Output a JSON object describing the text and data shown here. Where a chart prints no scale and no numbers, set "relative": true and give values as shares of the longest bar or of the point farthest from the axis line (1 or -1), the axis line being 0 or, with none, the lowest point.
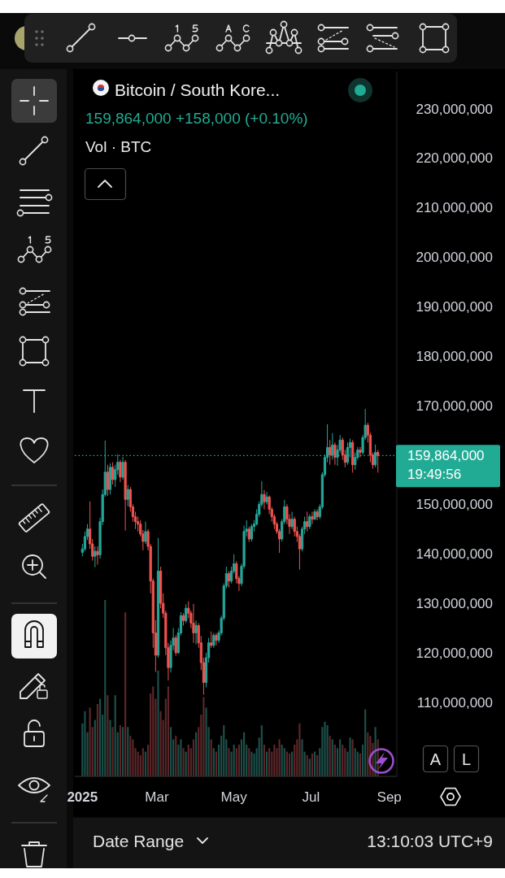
{
  "chart_data": [
    {
      "type": "candlestick",
      "title": "Bitcoin / South Kore...",
      "subtitle": "159,864,000 +158,000 (+0.10%)",
      "x": [
        "2025-01-01",
        "2025-01-03",
        "2025-01-05",
        "2025-01-07",
        "2025-01-09",
        "2025-01-11",
        "2025-01-13",
        "2025-01-15",
        "2025-01-17",
        "2025-01-19",
        "2025-01-21",
        "2025-01-23",
        "2025-01-25",
        "2025-01-27",
        "2025-01-29",
        "2025-01-31",
        "2025-02-02",
        "2025-02-04",
        "2025-02-06",
        "2025-02-08",
        "2025-02-10",
        "2025-02-12",
        "2025-02-14",
        "2025-02-16",
        "2025-02-18",
        "2025-02-20",
        "2025-02-22",
        "2025-02-24",
        "2025-02-26",
        "2025-02-28",
        "2025-03-02",
        "2025-03-04",
        "2025-03-06",
        "2025-03-08",
        "2025-03-10",
        "2025-03-12",
        "2025-03-14",
        "2025-03-16",
        "2025-03-18",
        "2025-03-20",
        "2025-03-22",
        "2025-03-24",
        "2025-03-26",
        "2025-03-28",
        "2025-03-30",
        "2025-04-01",
        "2025-04-03",
        "2025-04-05",
        "2025-04-07",
        "2025-04-09",
        "2025-04-11",
        "2025-04-13",
        "2025-04-15",
        "2025-04-17",
        "2025-04-19",
        "2025-04-21",
        "2025-04-23",
        "2025-04-25",
        "2025-04-27",
        "2025-04-29",
        "2025-05-01",
        "2025-05-03",
        "2025-05-05",
        "2025-05-07",
        "2025-05-09",
        "2025-05-11",
        "2025-05-13",
        "2025-05-15",
        "2025-05-17",
        "2025-05-19",
        "2025-05-21",
        "2025-05-23",
        "2025-05-25",
        "2025-05-27",
        "2025-05-29",
        "2025-05-31",
        "2025-06-02",
        "2025-06-04",
        "2025-06-06",
        "2025-06-08",
        "2025-06-10",
        "2025-06-12",
        "2025-06-14",
        "2025-06-16",
        "2025-06-18",
        "2025-06-20",
        "2025-06-22",
        "2025-06-24",
        "2025-06-26",
        "2025-06-28",
        "2025-06-30",
        "2025-07-02",
        "2025-07-04",
        "2025-07-06",
        "2025-07-08",
        "2025-07-10",
        "2025-07-12",
        "2025-07-14",
        "2025-07-16",
        "2025-07-18",
        "2025-07-20",
        "2025-07-22",
        "2025-07-24",
        "2025-07-26",
        "2025-07-28",
        "2025-07-30",
        "2025-08-01",
        "2025-08-03",
        "2025-08-05",
        "2025-08-07",
        "2025-08-09",
        "2025-08-11",
        "2025-08-13",
        "2025-08-15",
        "2025-08-17",
        "2025-08-19",
        "2025-08-21",
        "2025-08-23"
      ],
      "ohlc": [
        [
          140300000,
          142000000,
          139500000,
          141000000
        ],
        [
          141000000,
          144500000,
          140500000,
          143500000
        ],
        [
          143500000,
          146000000,
          142800000,
          145000000
        ],
        [
          145000000,
          150600000,
          141000000,
          142000000
        ],
        [
          142000000,
          143000000,
          138600000,
          139500000
        ],
        [
          139500000,
          141500000,
          137300000,
          140500000
        ],
        [
          140500000,
          141500000,
          137800000,
          139800000
        ],
        [
          139800000,
          147300000,
          139000000,
          146500000
        ],
        [
          146500000,
          153000000,
          145800000,
          152000000
        ],
        [
          152000000,
          162900000,
          151500000,
          156500000
        ],
        [
          156500000,
          158000000,
          151700000,
          153000000
        ],
        [
          153000000,
          158300000,
          152000000,
          157500000
        ],
        [
          157500000,
          158500000,
          154000000,
          155000000
        ],
        [
          155000000,
          158000000,
          153500000,
          157000000
        ],
        [
          157000000,
          160100000,
          156000000,
          158500000
        ],
        [
          158500000,
          159000000,
          154500000,
          155500000
        ],
        [
          155500000,
          159600000,
          155000000,
          158500000
        ],
        [
          158500000,
          159000000,
          144700000,
          151000000
        ],
        [
          151000000,
          153900000,
          149600000,
          153000000
        ],
        [
          153000000,
          153500000,
          148500000,
          149500000
        ],
        [
          149500000,
          150000000,
          146500000,
          147500000
        ],
        [
          147500000,
          148500000,
          145000000,
          146500000
        ],
        [
          146500000,
          147500000,
          144500000,
          146000000
        ],
        [
          146000000,
          146800000,
          143500000,
          144000000
        ],
        [
          144000000,
          144800000,
          140700000,
          142500000
        ],
        [
          142500000,
          146500000,
          142000000,
          144500000
        ],
        [
          144500000,
          145000000,
          140700000,
          141500000
        ],
        [
          141500000,
          142000000,
          132000000,
          134500000
        ],
        [
          134500000,
          135000000,
          121000000,
          124000000
        ],
        [
          124000000,
          126600000,
          116100000,
          119500000
        ],
        [
          119500000,
          143200000,
          119000000,
          136500000
        ],
        [
          136500000,
          137400000,
          129000000,
          130000000
        ],
        [
          130000000,
          132000000,
          127000000,
          128000000
        ],
        [
          128000000,
          128500000,
          119500000,
          121000000
        ],
        [
          121000000,
          122000000,
          114400000,
          117000000
        ],
        [
          117000000,
          122500000,
          116000000,
          121500000
        ],
        [
          121500000,
          125000000,
          120500000,
          123000000
        ],
        [
          123000000,
          123500000,
          119400000,
          120000000
        ],
        [
          120000000,
          125000000,
          119800000,
          124000000
        ],
        [
          124000000,
          128200000,
          123500000,
          127500000
        ],
        [
          127500000,
          128000000,
          125500000,
          126500000
        ],
        [
          126500000,
          129800000,
          126000000,
          129000000
        ],
        [
          129000000,
          130400000,
          127000000,
          128000000
        ],
        [
          128000000,
          128500000,
          125000000,
          126000000
        ],
        [
          126000000,
          129900000,
          122000000,
          124000000
        ],
        [
          124000000,
          126500000,
          121700000,
          125500000
        ],
        [
          125500000,
          126000000,
          121000000,
          122000000
        ],
        [
          122000000,
          123400000,
          116500000,
          118000000
        ],
        [
          118000000,
          119000000,
          111500000,
          114000000
        ],
        [
          114000000,
          120000000,
          113000000,
          119000000
        ],
        [
          119000000,
          123000000,
          118000000,
          122000000
        ],
        [
          122000000,
          124300000,
          121000000,
          121500000
        ],
        [
          121500000,
          124000000,
          121000000,
          123500000
        ],
        [
          123500000,
          124000000,
          121500000,
          122500000
        ],
        [
          122500000,
          124500000,
          122000000,
          124000000
        ],
        [
          124000000,
          127500000,
          123500000,
          127000000
        ],
        [
          127000000,
          134000000,
          126500000,
          133500000
        ],
        [
          133500000,
          137400000,
          133000000,
          136000000
        ],
        [
          136000000,
          136500000,
          133200000,
          134500000
        ],
        [
          134500000,
          137400000,
          134000000,
          136500000
        ],
        [
          136500000,
          139900000,
          136000000,
          138000000
        ],
        [
          138000000,
          138500000,
          134000000,
          135000000
        ],
        [
          135000000,
          135500000,
          132500000,
          134000000
        ],
        [
          134000000,
          138000000,
          133500000,
          137500000
        ],
        [
          137500000,
          145700000,
          137000000,
          144500000
        ],
        [
          144500000,
          146800000,
          143500000,
          145000000
        ],
        [
          145000000,
          145500000,
          142400000,
          143000000
        ],
        [
          143000000,
          146000000,
          142500000,
          145500000
        ],
        [
          145500000,
          146800000,
          144500000,
          146000000
        ],
        [
          146000000,
          149000000,
          145700000,
          148000000
        ],
        [
          148000000,
          150600000,
          147500000,
          150000000
        ],
        [
          150000000,
          154700000,
          149500000,
          152000000
        ],
        [
          152000000,
          152900000,
          149000000,
          150500000
        ],
        [
          150500000,
          152500000,
          150000000,
          151500000
        ],
        [
          151500000,
          151800000,
          148000000,
          149000000
        ],
        [
          149000000,
          149500000,
          146500000,
          147500000
        ],
        [
          147500000,
          148000000,
          145000000,
          146000000
        ],
        [
          146000000,
          146500000,
          144000000,
          144500000
        ],
        [
          144500000,
          145000000,
          140200000,
          143000000
        ],
        [
          143000000,
          147000000,
          142500000,
          146500000
        ],
        [
          146500000,
          150900000,
          146000000,
          149500000
        ],
        [
          149500000,
          150000000,
          146000000,
          147000000
        ],
        [
          147000000,
          148000000,
          144000000,
          145500000
        ],
        [
          145500000,
          148500000,
          145000000,
          147000000
        ],
        [
          147000000,
          147500000,
          143500000,
          144500000
        ],
        [
          144500000,
          145500000,
          142400000,
          143500000
        ],
        [
          143500000,
          144000000,
          136800000,
          141000000
        ],
        [
          141000000,
          145500000,
          140500000,
          145000000
        ],
        [
          145000000,
          147500000,
          144000000,
          146500000
        ],
        [
          146500000,
          148500000,
          144500000,
          145500000
        ],
        [
          145500000,
          148000000,
          145000000,
          147500000
        ],
        [
          147500000,
          148500000,
          146000000,
          147000000
        ],
        [
          147000000,
          149000000,
          146800000,
          148500000
        ],
        [
          148500000,
          149000000,
          146800000,
          147500000
        ],
        [
          147500000,
          150000000,
          147000000,
          149500000
        ],
        [
          149500000,
          156500000,
          149000000,
          156000000
        ],
        [
          156000000,
          160000000,
          155500000,
          159500000
        ],
        [
          159500000,
          166200000,
          158500000,
          161500000
        ],
        [
          161500000,
          163000000,
          158000000,
          160000000
        ],
        [
          160000000,
          164400000,
          159000000,
          162000000
        ],
        [
          162000000,
          162500000,
          158000000,
          159500000
        ],
        [
          159500000,
          162000000,
          157800000,
          161000000
        ],
        [
          161000000,
          164000000,
          160500000,
          163000000
        ],
        [
          163000000,
          163500000,
          159000000,
          160000000
        ],
        [
          160000000,
          161000000,
          157500000,
          158500000
        ],
        [
          158500000,
          162500000,
          158000000,
          161500000
        ],
        [
          161500000,
          163300000,
          159500000,
          162500000
        ],
        [
          162500000,
          163000000,
          156400000,
          158000000
        ],
        [
          158000000,
          160500000,
          157000000,
          159500000
        ],
        [
          159500000,
          161600000,
          159000000,
          161000000
        ],
        [
          161000000,
          161600000,
          159500000,
          160500000
        ],
        [
          160500000,
          164000000,
          160000000,
          163500000
        ],
        [
          163500000,
          169300000,
          163000000,
          166000000
        ],
        [
          166000000,
          166500000,
          162500000,
          164000000
        ],
        [
          164000000,
          164500000,
          158500000,
          160000000
        ],
        [
          160000000,
          160500000,
          157200000,
          158000000
        ],
        [
          158000000,
          162100000,
          157500000,
          160500000
        ],
        [
          160500000,
          161000000,
          156400000,
          159864000
        ]
      ],
      "colors": [
        "#26a69a",
        "#26a69a",
        "#26a69a",
        "#ef5350",
        "#ef5350",
        "#26a69a",
        "#ef5350",
        "#26a69a",
        "#26a69a",
        "#26a69a",
        "#ef5350",
        "#26a69a",
        "#ef5350",
        "#26a69a",
        "#26a69a",
        "#ef5350",
        "#26a69a",
        "#ef5350",
        "#26a69a",
        "#ef5350",
        "#ef5350",
        "#ef5350",
        "#ef5350",
        "#ef5350",
        "#ef5350",
        "#26a69a",
        "#ef5350",
        "#ef5350",
        "#ef5350",
        "#ef5350",
        "#26a69a",
        "#ef5350",
        "#ef5350",
        "#ef5350",
        "#ef5350",
        "#26a69a",
        "#26a69a",
        "#ef5350",
        "#26a69a",
        "#26a69a",
        "#ef5350",
        "#26a69a",
        "#ef5350",
        "#ef5350",
        "#ef5350",
        "#26a69a",
        "#ef5350",
        "#ef5350",
        "#ef5350",
        "#26a69a",
        "#26a69a",
        "#ef5350",
        "#26a69a",
        "#ef5350",
        "#26a69a",
        "#26a69a",
        "#26a69a",
        "#26a69a",
        "#ef5350",
        "#26a69a",
        "#26a69a",
        "#ef5350",
        "#ef5350",
        "#26a69a",
        "#26a69a",
        "#26a69a",
        "#ef5350",
        "#26a69a",
        "#26a69a",
        "#26a69a",
        "#26a69a",
        "#26a69a",
        "#ef5350",
        "#26a69a",
        "#ef5350",
        "#ef5350",
        "#ef5350",
        "#ef5350",
        "#ef5350",
        "#26a69a",
        "#26a69a",
        "#ef5350",
        "#ef5350",
        "#26a69a",
        "#ef5350",
        "#ef5350",
        "#ef5350",
        "#26a69a",
        "#26a69a",
        "#ef5350",
        "#26a69a",
        "#ef5350",
        "#26a69a",
        "#ef5350",
        "#26a69a",
        "#26a69a",
        "#26a69a",
        "#26a69a",
        "#ef5350",
        "#26a69a",
        "#ef5350",
        "#26a69a",
        "#26a69a",
        "#ef5350",
        "#ef5350",
        "#26a69a",
        "#26a69a",
        "#ef5350",
        "#26a69a",
        "#26a69a",
        "#ef5350",
        "#26a69a",
        "#26a69a",
        "#ef5350",
        "#ef5350",
        "#ef5350",
        "#26a69a",
        "#ef5350"
      ],
      "xlim": [
        "2024-12-26",
        "2025-09-07"
      ],
      "xticks": [
        {
          "value": "2025-01-01",
          "label": "2025"
        },
        {
          "value": "2025-03-01",
          "label": "Mar"
        },
        {
          "value": "2025-05-01",
          "label": "May"
        },
        {
          "value": "2025-07-01",
          "label": "Jul"
        },
        {
          "value": "2025-09-01",
          "label": "Sep"
        }
      ],
      "ylim": [
        95000000,
        237500000
      ],
      "yticks": [
        {
          "value": 110000000,
          "label": "110,000,000"
        },
        {
          "value": 120000000,
          "label": "120,000,000"
        },
        {
          "value": 130000000,
          "label": "130,000,000"
        },
        {
          "value": 140000000,
          "label": "140,000,000"
        },
        {
          "value": 150000000,
          "label": "150,000,000"
        },
        {
          "value": 170000000,
          "label": "170,000,000"
        },
        {
          "value": 180000000,
          "label": "180,000,000"
        },
        {
          "value": 190000000,
          "label": "190,000,000"
        },
        {
          "value": 200000000,
          "label": "200,000,000"
        },
        {
          "value": 210000000,
          "label": "210,000,000"
        },
        {
          "value": 220000000,
          "label": "220,000,000"
        },
        {
          "value": 230000000,
          "label": "230,000,000"
        }
      ],
      "ref_lines": [
        {
          "axis": "y",
          "value": 159864000,
          "label": "159,864,000",
          "color": "#22ab94",
          "line_style": "dotted"
        }
      ],
      "annotations": [
        "19:49:56",
        "A",
        "L",
        "Date Range",
        "13:10:03 UTC+9"
      ]
    },
    {
      "type": "bar",
      "title": "Vol · BTC",
      "relative": true,
      "tick_labels": false,
      "x": [
        "2025-01-01",
        "2025-01-03",
        "2025-01-05",
        "2025-01-07",
        "2025-01-09",
        "2025-01-11",
        "2025-01-13",
        "2025-01-15",
        "2025-01-17",
        "2025-01-19",
        "2025-01-21",
        "2025-01-23",
        "2025-01-25",
        "2025-01-27",
        "2025-01-29",
        "2025-01-31",
        "2025-02-02",
        "2025-02-04",
        "2025-02-06",
        "2025-02-08",
        "2025-02-10",
        "2025-02-12",
        "2025-02-14",
        "2025-02-16",
        "2025-02-18",
        "2025-02-20",
        "2025-02-22",
        "2025-02-24",
        "2025-02-26",
        "2025-02-28",
        "2025-03-02",
        "2025-03-04",
        "2025-03-06",
        "2025-03-08",
        "2025-03-10",
        "2025-03-12",
        "2025-03-14",
        "2025-03-16",
        "2025-03-18",
        "2025-03-20",
        "2025-03-22",
        "2025-03-24",
        "2025-03-26",
        "2025-03-28",
        "2025-03-30",
        "2025-04-01",
        "2025-04-03",
        "2025-04-05",
        "2025-04-07",
        "2025-04-09",
        "2025-04-11",
        "2025-04-13",
        "2025-04-15",
        "2025-04-17",
        "2025-04-19",
        "2025-04-21",
        "2025-04-23",
        "2025-04-25",
        "2025-04-27",
        "2025-04-29",
        "2025-05-01",
        "2025-05-03",
        "2025-05-05",
        "2025-05-07",
        "2025-05-09",
        "2025-05-11",
        "2025-05-13",
        "2025-05-15",
        "2025-05-17",
        "2025-05-19",
        "2025-05-21",
        "2025-05-23",
        "2025-05-25",
        "2025-05-27",
        "2025-05-29",
        "2025-05-31",
        "2025-06-02",
        "2025-06-04",
        "2025-06-06",
        "2025-06-08",
        "2025-06-10",
        "2025-06-12",
        "2025-06-14",
        "2025-06-16",
        "2025-06-18",
        "2025-06-20",
        "2025-06-22",
        "2025-06-24",
        "2025-06-26",
        "2025-06-28",
        "2025-06-30",
        "2025-07-02",
        "2025-07-04",
        "2025-07-06",
        "2025-07-08",
        "2025-07-10",
        "2025-07-12",
        "2025-07-14",
        "2025-07-16",
        "2025-07-18",
        "2025-07-20",
        "2025-07-22",
        "2025-07-24",
        "2025-07-26",
        "2025-07-28",
        "2025-07-30",
        "2025-08-01",
        "2025-08-03",
        "2025-08-05",
        "2025-08-07",
        "2025-08-09",
        "2025-08-11",
        "2025-08-13",
        "2025-08-15",
        "2025-08-17",
        "2025-08-19",
        "2025-08-21",
        "2025-08-23"
      ],
      "values": [
        0.3,
        0.37,
        0.25,
        0.39,
        0.28,
        0.32,
        0.41,
        0.44,
        0.35,
        1,
        0.46,
        0.32,
        0.28,
        0.46,
        0.25,
        0.29,
        0.28,
        0.93,
        0.28,
        0.23,
        0.21,
        0.16,
        0.14,
        0.12,
        0.16,
        0.14,
        0.18,
        0.47,
        0.51,
        0.44,
        0.6,
        0.37,
        0.32,
        0.44,
        0.51,
        0.28,
        0.21,
        0.23,
        0.18,
        0.21,
        0.16,
        0.14,
        0.18,
        0.16,
        0.21,
        0.25,
        0.28,
        0.35,
        0.45,
        0.39,
        0.28,
        0.21,
        0.16,
        0.14,
        0.18,
        0.23,
        0.29,
        0.21,
        0.16,
        0.14,
        0.18,
        0.16,
        0.18,
        0.21,
        0.25,
        0.18,
        0.16,
        0.14,
        0.13,
        0.16,
        0.22,
        0.29,
        0.18,
        0.14,
        0.16,
        0.14,
        0.18,
        0.16,
        0.21,
        0.18,
        0.16,
        0.14,
        0.13,
        0.14,
        0.18,
        0.21,
        0.3,
        0.21,
        0.14,
        0.12,
        0.1,
        0.13,
        0.14,
        0.12,
        0.16,
        0.28,
        0.31,
        0.29,
        0.23,
        0.21,
        0.18,
        0.16,
        0.21,
        0.18,
        0.16,
        0.14,
        0.22,
        0.21,
        0.16,
        0.14,
        0.13,
        0.18,
        0.38,
        0.25,
        0.23,
        0.19,
        0.28,
        0.21
      ],
      "colors": [
        "#1c4f49",
        "#1c4f49",
        "#1c4f49",
        "#5c2629",
        "#5c2629",
        "#1c4f49",
        "#5c2629",
        "#1c4f49",
        "#1c4f49",
        "#1c4f49",
        "#5c2629",
        "#1c4f49",
        "#5c2629",
        "#1c4f49",
        "#1c4f49",
        "#5c2629",
        "#1c4f49",
        "#5c2629",
        "#1c4f49",
        "#5c2629",
        "#5c2629",
        "#5c2629",
        "#5c2629",
        "#5c2629",
        "#5c2629",
        "#1c4f49",
        "#5c2629",
        "#5c2629",
        "#5c2629",
        "#5c2629",
        "#1c4f49",
        "#5c2629",
        "#5c2629",
        "#5c2629",
        "#5c2629",
        "#1c4f49",
        "#1c4f49",
        "#5c2629",
        "#1c4f49",
        "#1c4f49",
        "#5c2629",
        "#1c4f49",
        "#5c2629",
        "#5c2629",
        "#5c2629",
        "#1c4f49",
        "#5c2629",
        "#5c2629",
        "#5c2629",
        "#1c4f49",
        "#1c4f49",
        "#5c2629",
        "#1c4f49",
        "#5c2629",
        "#1c4f49",
        "#1c4f49",
        "#1c4f49",
        "#1c4f49",
        "#5c2629",
        "#1c4f49",
        "#1c4f49",
        "#5c2629",
        "#5c2629",
        "#1c4f49",
        "#1c4f49",
        "#1c4f49",
        "#5c2629",
        "#1c4f49",
        "#1c4f49",
        "#1c4f49",
        "#1c4f49",
        "#1c4f49",
        "#5c2629",
        "#1c4f49",
        "#5c2629",
        "#5c2629",
        "#5c2629",
        "#5c2629",
        "#5c2629",
        "#1c4f49",
        "#1c4f49",
        "#5c2629",
        "#5c2629",
        "#1c4f49",
        "#5c2629",
        "#5c2629",
        "#5c2629",
        "#1c4f49",
        "#1c4f49",
        "#5c2629",
        "#1c4f49",
        "#5c2629",
        "#1c4f49",
        "#5c2629",
        "#1c4f49",
        "#1c4f49",
        "#1c4f49",
        "#1c4f49",
        "#5c2629",
        "#1c4f49",
        "#5c2629",
        "#1c4f49",
        "#1c4f49",
        "#5c2629",
        "#5c2629",
        "#1c4f49",
        "#1c4f49",
        "#5c2629",
        "#1c4f49",
        "#1c4f49",
        "#5c2629",
        "#1c4f49",
        "#1c4f49",
        "#5c2629",
        "#5c2629",
        "#5c2629",
        "#1c4f49",
        "#5c2629"
      ],
      "xlim": [
        "2024-12-26",
        "2025-09-07"
      ]
    }
  ]
}
